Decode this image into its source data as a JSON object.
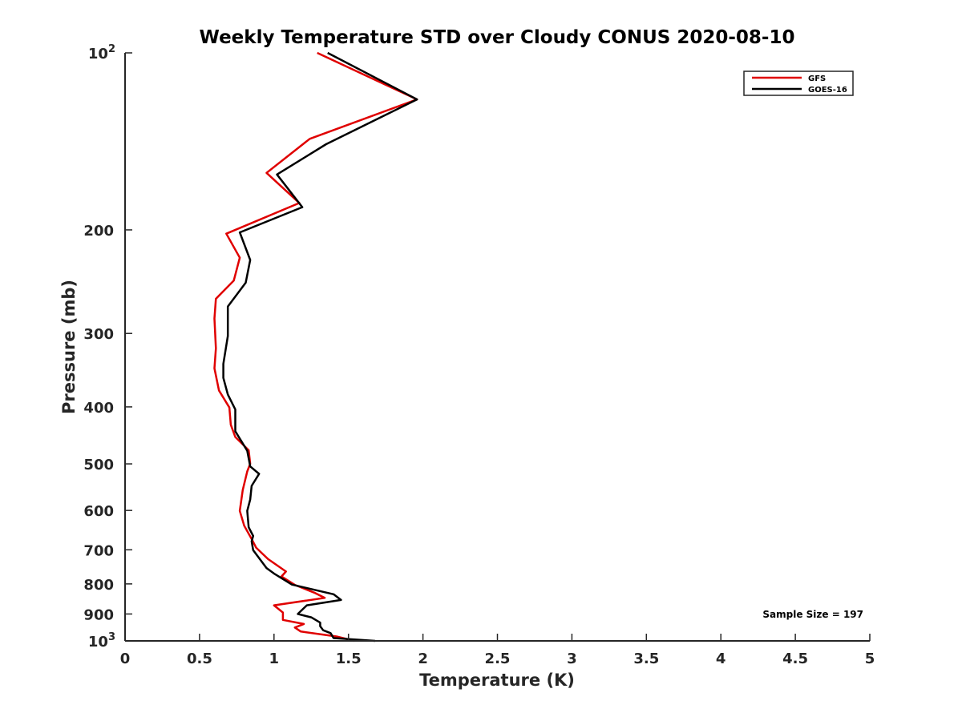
{
  "chart_data": {
    "type": "line",
    "title": "Weekly Temperature STD over Cloudy CONUS 2020-08-10",
    "xlabel": "Temperature (K)",
    "ylabel": "Pressure (mb)",
    "xlim": [
      0,
      5
    ],
    "ylim": [
      100,
      1000
    ],
    "y_scale": "log",
    "y_reversed": true,
    "grid": false,
    "legend_position": "top-right",
    "x_ticks": [
      "0",
      "0.5",
      "1",
      "1.5",
      "2",
      "2.5",
      "3",
      "3.5",
      "4",
      "4.5",
      "5"
    ],
    "y_ticks": [
      {
        "value": 100,
        "label": "10",
        "sup": "2"
      },
      {
        "value": 200,
        "label": "200"
      },
      {
        "value": 300,
        "label": "300"
      },
      {
        "value": 400,
        "label": "400"
      },
      {
        "value": 500,
        "label": "500"
      },
      {
        "value": 600,
        "label": "600"
      },
      {
        "value": 700,
        "label": "700"
      },
      {
        "value": 800,
        "label": "800"
      },
      {
        "value": 900,
        "label": "900"
      },
      {
        "value": 1000,
        "label": "10",
        "sup": "3"
      }
    ],
    "annotation": "Sample Size = 197",
    "series": [
      {
        "name": "GFS",
        "color": "#e00000",
        "points": [
          [
            1.29,
            100
          ],
          [
            1.96,
            120
          ],
          [
            1.24,
            140
          ],
          [
            0.95,
            160
          ],
          [
            1.17,
            180
          ],
          [
            0.68,
            203
          ],
          [
            0.77,
            223
          ],
          [
            0.73,
            244
          ],
          [
            0.61,
            262
          ],
          [
            0.6,
            283
          ],
          [
            0.61,
            318
          ],
          [
            0.6,
            344
          ],
          [
            0.63,
            375
          ],
          [
            0.7,
            401
          ],
          [
            0.71,
            429
          ],
          [
            0.74,
            450
          ],
          [
            0.83,
            474
          ],
          [
            0.84,
            500
          ],
          [
            0.82,
            515
          ],
          [
            0.79,
            554
          ],
          [
            0.77,
            601
          ],
          [
            0.8,
            637
          ],
          [
            0.85,
            671
          ],
          [
            0.88,
            694
          ],
          [
            0.96,
            726
          ],
          [
            1.08,
            762
          ],
          [
            1.05,
            777
          ],
          [
            1.14,
            803
          ],
          [
            1.27,
            828
          ],
          [
            1.34,
            845
          ],
          [
            1.0,
            870
          ],
          [
            1.06,
            895
          ],
          [
            1.06,
            921
          ],
          [
            1.2,
            936
          ],
          [
            1.14,
            949
          ],
          [
            1.18,
            964
          ],
          [
            1.42,
            983
          ],
          [
            1.54,
            1000
          ]
        ]
      },
      {
        "name": "GOES-16",
        "color": "#000000",
        "points": [
          [
            1.36,
            100
          ],
          [
            1.96,
            120
          ],
          [
            1.35,
            143
          ],
          [
            1.02,
            161
          ],
          [
            1.19,
            183
          ],
          [
            0.77,
            202
          ],
          [
            0.84,
            225
          ],
          [
            0.81,
            246
          ],
          [
            0.69,
            270
          ],
          [
            0.69,
            303
          ],
          [
            0.66,
            338
          ],
          [
            0.66,
            357
          ],
          [
            0.69,
            381
          ],
          [
            0.74,
            404
          ],
          [
            0.74,
            440
          ],
          [
            0.82,
            475
          ],
          [
            0.84,
            505
          ],
          [
            0.9,
            520
          ],
          [
            0.85,
            545
          ],
          [
            0.84,
            575
          ],
          [
            0.82,
            601
          ],
          [
            0.83,
            641
          ],
          [
            0.86,
            663
          ],
          [
            0.85,
            677
          ],
          [
            0.86,
            701
          ],
          [
            0.95,
            752
          ],
          [
            1.0,
            768
          ],
          [
            1.12,
            802
          ],
          [
            1.4,
            833
          ],
          [
            1.45,
            852
          ],
          [
            1.22,
            870
          ],
          [
            1.16,
            900
          ],
          [
            1.25,
            912
          ],
          [
            1.31,
            931
          ],
          [
            1.31,
            944
          ],
          [
            1.33,
            959
          ],
          [
            1.38,
            970
          ],
          [
            1.4,
            989
          ],
          [
            1.68,
            1000
          ]
        ]
      }
    ]
  }
}
